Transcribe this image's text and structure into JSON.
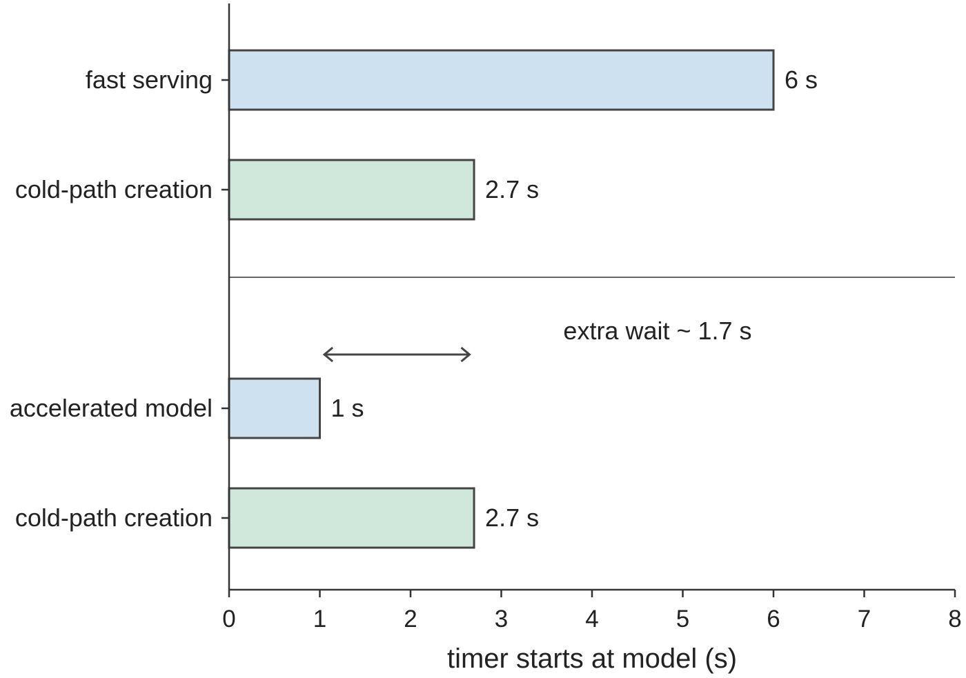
{
  "chart_data": {
    "type": "bar",
    "orientation": "horizontal",
    "categories": [
      "fast serving",
      "cold-path creation",
      "accelerated model",
      "cold-path creation"
    ],
    "values": [
      6,
      2.7,
      1,
      2.7
    ],
    "value_labels": [
      "6 s",
      "2.7 s",
      "1 s",
      "2.7 s"
    ],
    "bar_colors": [
      "#cde1f1",
      "#d0e7dc",
      "#cde1f1",
      "#d0e7dc"
    ],
    "edge_color": "#444444",
    "xlabel": "timer starts at model (s)",
    "ylabel": "",
    "xlim": [
      0,
      8
    ],
    "xticks": [
      "0",
      "1",
      "2",
      "3",
      "4",
      "5",
      "6",
      "7",
      "8"
    ],
    "grid": false,
    "groups": 2,
    "annotation": {
      "text": "extra wait ~ 1.7 s",
      "arrow_from": 1.05,
      "arrow_to": 2.65
    }
  }
}
